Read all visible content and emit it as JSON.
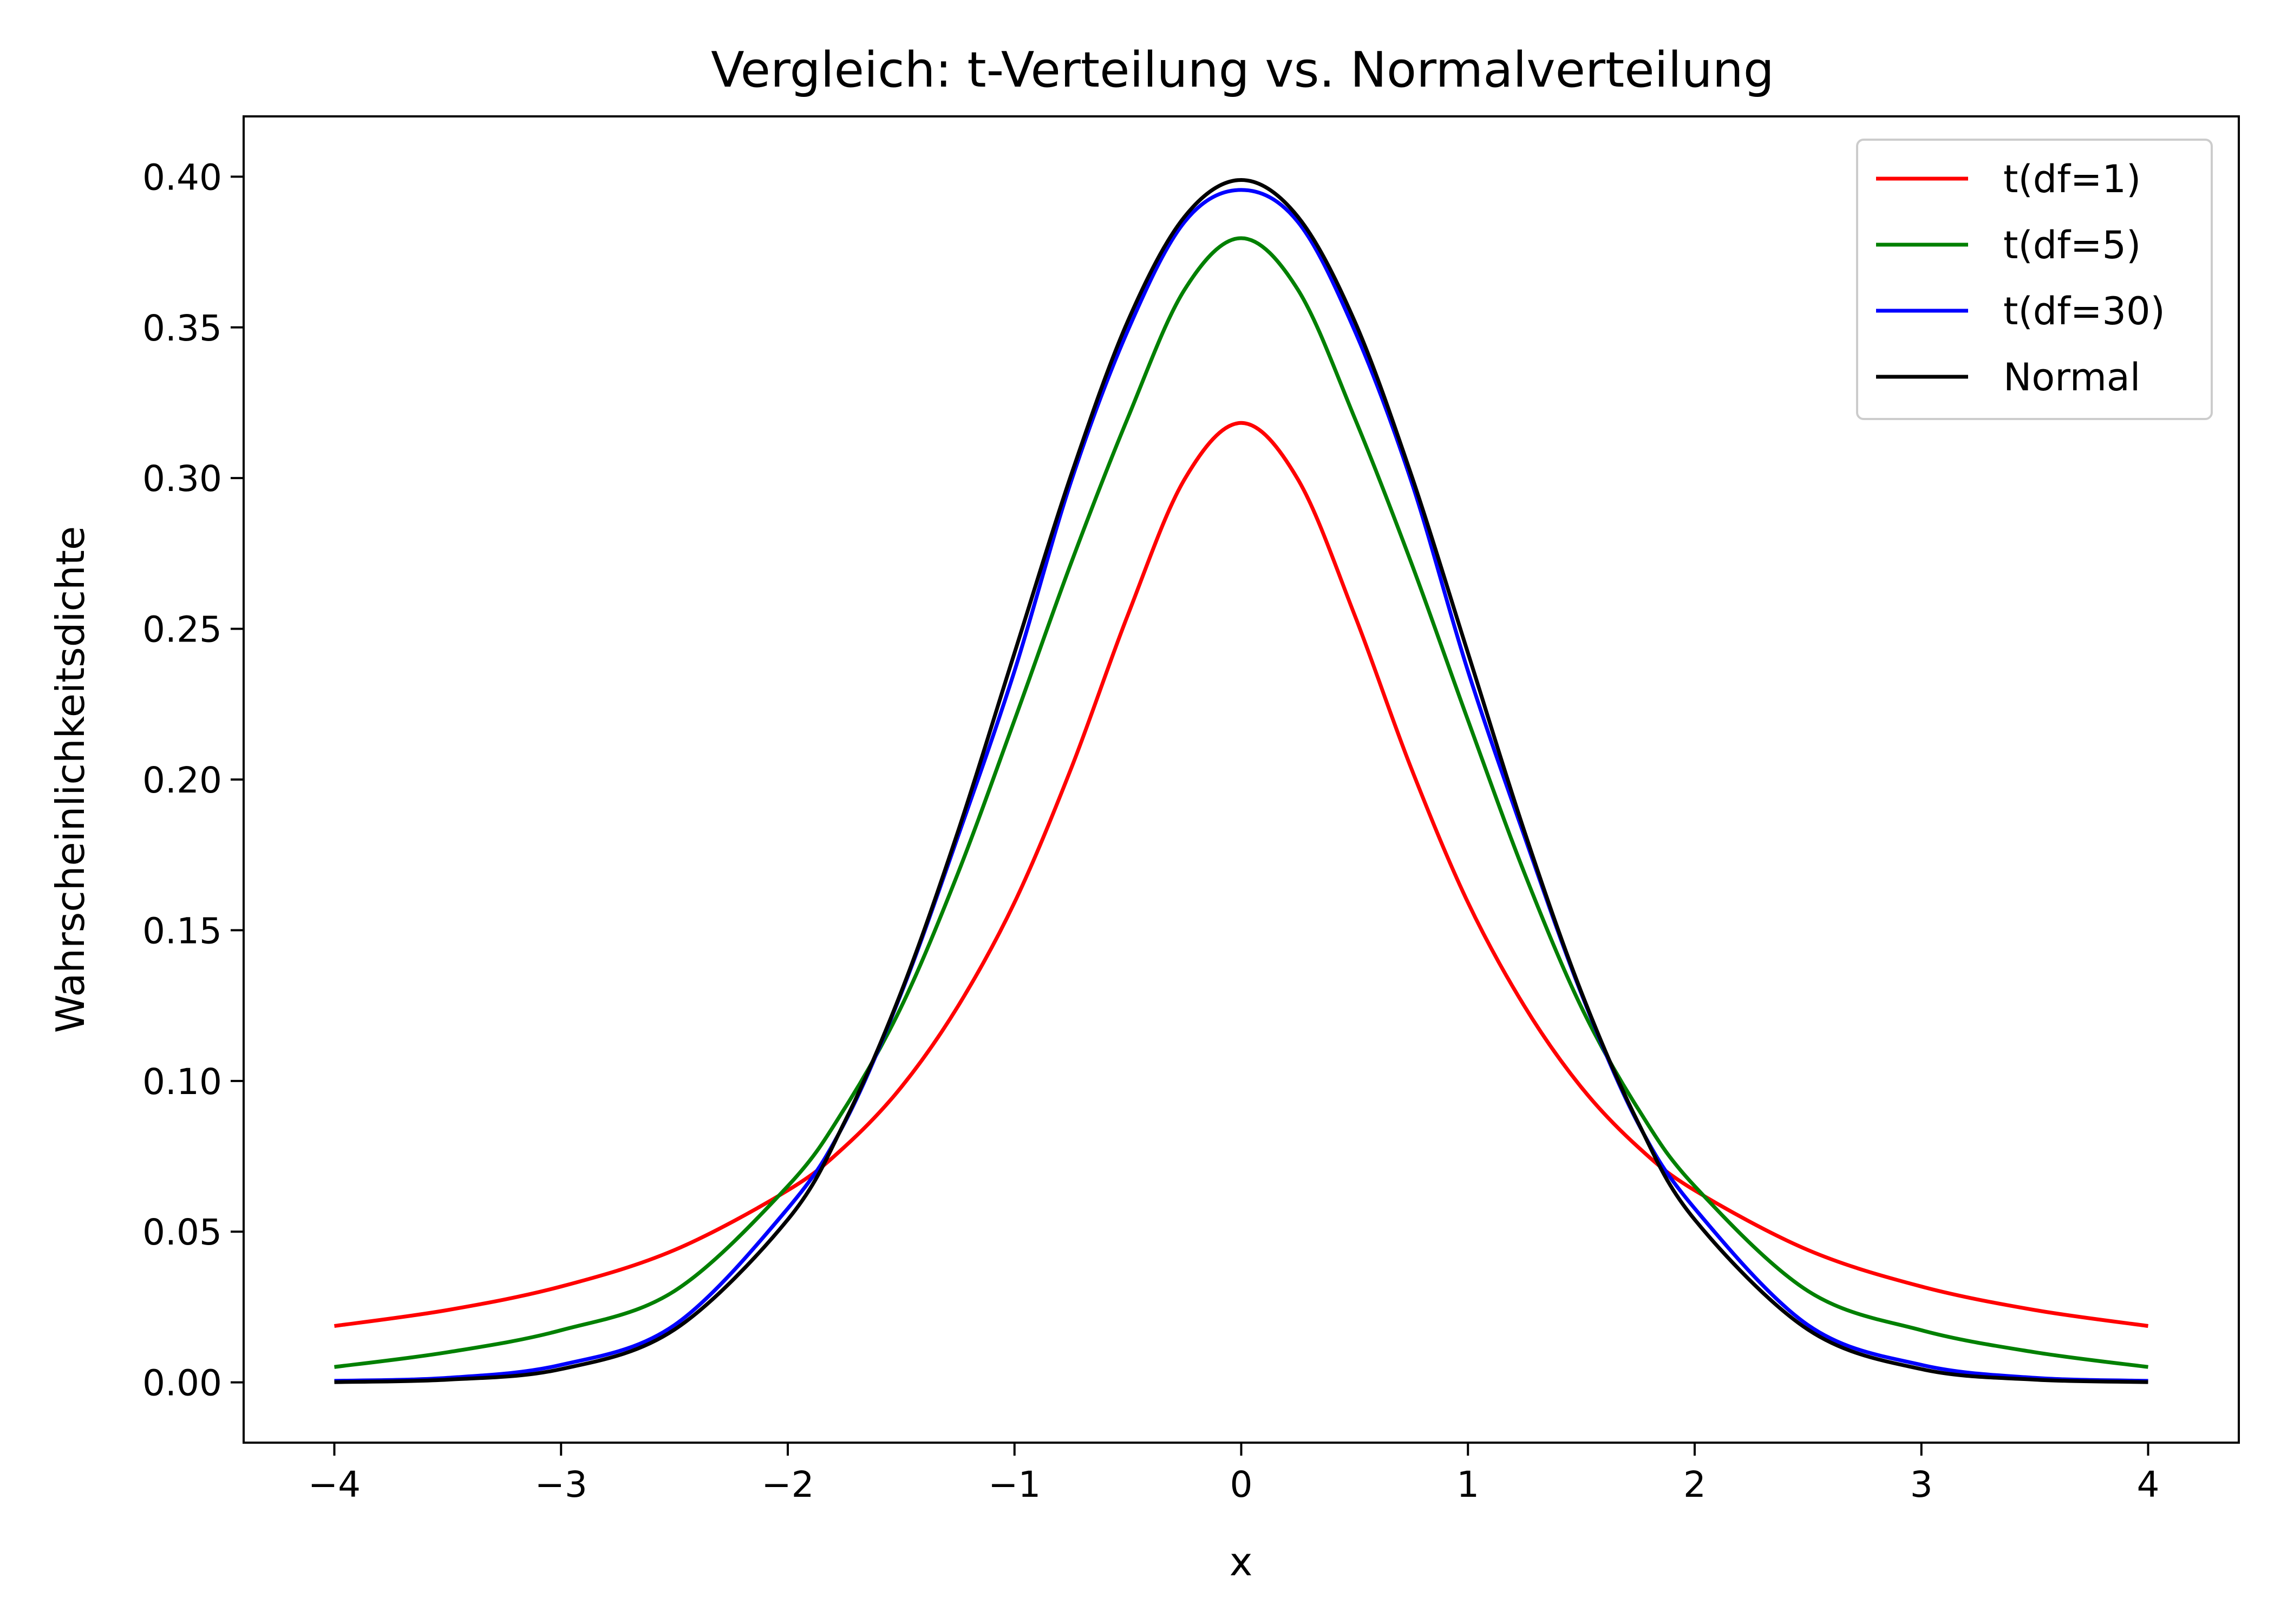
{
  "chart_data": {
    "type": "line",
    "title": "Vergleich: t-Verteilung vs. Normalverteilung",
    "xlabel": "x",
    "ylabel": "Wahrscheinlichkeitsdichte",
    "xlim": [
      -4.4,
      4.4
    ],
    "ylim": [
      -0.02,
      0.42
    ],
    "xticks": [
      -4,
      -3,
      -2,
      -1,
      0,
      1,
      2,
      3,
      4
    ],
    "xtick_labels": [
      "−4",
      "−3",
      "−2",
      "−1",
      "0",
      "1",
      "2",
      "3",
      "4"
    ],
    "yticks": [
      0.0,
      0.05,
      0.1,
      0.15,
      0.2,
      0.25,
      0.3,
      0.35,
      0.4
    ],
    "ytick_labels": [
      "0.00",
      "0.05",
      "0.10",
      "0.15",
      "0.20",
      "0.25",
      "0.30",
      "0.35",
      "0.40"
    ],
    "grid": false,
    "legend_position": "top-right",
    "x": [
      -4.0,
      -3.5,
      -3.0,
      -2.5,
      -2.0,
      -1.75,
      -1.5,
      -1.25,
      -1.0,
      -0.75,
      -0.5,
      -0.25,
      0.0,
      0.25,
      0.5,
      0.75,
      1.0,
      1.25,
      1.5,
      1.75,
      2.0,
      2.5,
      3.0,
      3.5,
      4.0
    ],
    "series": [
      {
        "name": "t(df=1)",
        "color": "#ff0000",
        "values": [
          0.0187,
          0.024,
          0.0318,
          0.0439,
          0.0637,
          0.0781,
          0.0979,
          0.1247,
          0.1592,
          0.2037,
          0.2546,
          0.2996,
          0.3183,
          0.2996,
          0.2546,
          0.2037,
          0.1592,
          0.1247,
          0.0979,
          0.0781,
          0.0637,
          0.0439,
          0.0318,
          0.024,
          0.0187
        ]
      },
      {
        "name": "t(df=5)",
        "color": "#008000",
        "values": [
          0.0051,
          0.01,
          0.0173,
          0.0303,
          0.0651,
          0.0908,
          0.1245,
          0.1688,
          0.2197,
          0.2719,
          0.32,
          0.3625,
          0.3796,
          0.3625,
          0.32,
          0.2719,
          0.2197,
          0.1688,
          0.1245,
          0.0908,
          0.0651,
          0.0303,
          0.0173,
          0.01,
          0.0051
        ]
      },
      {
        "name": "t(df=30)",
        "color": "#0000ff",
        "values": [
          0.0005,
          0.0015,
          0.0058,
          0.019,
          0.0577,
          0.086,
          0.129,
          0.181,
          0.236,
          0.299,
          0.349,
          0.385,
          0.3956,
          0.385,
          0.349,
          0.299,
          0.236,
          0.181,
          0.129,
          0.086,
          0.0577,
          0.019,
          0.0058,
          0.0015,
          0.0005
        ]
      },
      {
        "name": "Normal",
        "color": "#000000",
        "values": [
          0.0001,
          0.0009,
          0.0044,
          0.0175,
          0.054,
          0.0863,
          0.1295,
          0.1826,
          0.242,
          0.3011,
          0.3521,
          0.3867,
          0.3989,
          0.3867,
          0.3521,
          0.3011,
          0.242,
          0.1826,
          0.1295,
          0.0863,
          0.054,
          0.0175,
          0.0044,
          0.0009,
          0.0001
        ]
      }
    ]
  }
}
